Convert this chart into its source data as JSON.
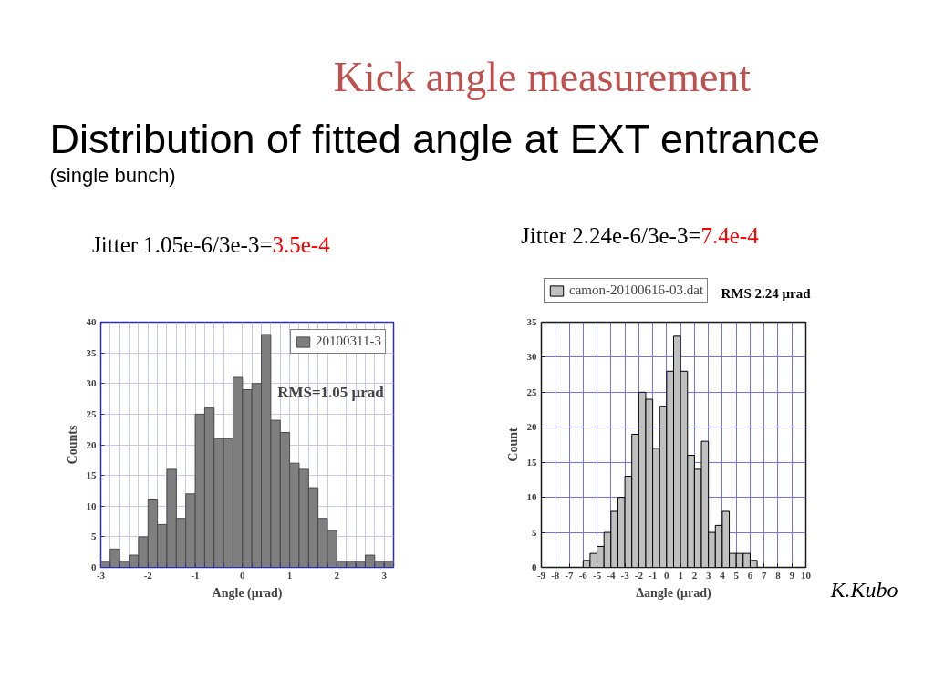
{
  "chart_data": [
    {
      "type": "histogram",
      "title": "Kick angle measurement",
      "subtitle": "Distribution of fitted angle at EXT entrance",
      "xlabel": "Angle (μrad)",
      "ylabel": "Counts",
      "bins": [
        -3,
        -2.8,
        -2.6,
        -2.4,
        -2.2,
        -2,
        -1.8,
        -1.6,
        -1.4,
        -1.2,
        -1,
        -0.8,
        -0.6,
        -0.4,
        -0.2,
        0,
        0.2,
        0.4,
        0.6,
        0.8,
        1,
        1.2,
        1.4,
        1.6,
        1.8,
        2,
        2.2,
        2.4,
        2.6,
        2.8,
        3,
        3.2
      ],
      "series": [
        {
          "name": "20100311-3",
          "color": "#7f7f7f",
          "values": [
            1,
            3,
            1,
            2,
            5,
            11,
            7,
            16,
            8,
            12,
            25,
            26,
            21,
            21,
            31,
            29,
            30,
            38,
            24,
            22,
            17,
            16,
            13,
            8,
            6,
            1,
            1,
            1,
            2,
            1,
            1
          ]
        }
      ],
      "xlim": [
        -3,
        3.2
      ],
      "ylim": [
        0,
        40
      ],
      "xticks": [
        -3,
        {
          "value": -2.8,
          "label": null
        },
        {
          "value": -2.6,
          "label": null
        },
        {
          "value": -2.4,
          "label": null
        },
        {
          "value": -2.2,
          "label": null
        },
        -2,
        {
          "value": -1.8,
          "label": null
        },
        {
          "value": -1.6,
          "label": null
        },
        {
          "value": -1.4,
          "label": null
        },
        {
          "value": -1.2,
          "label": null
        },
        -1,
        {
          "value": -0.8,
          "label": null
        },
        {
          "value": -0.6,
          "label": null
        },
        {
          "value": -0.4,
          "label": null
        },
        {
          "value": -0.2,
          "label": null
        },
        0,
        {
          "value": 0.2,
          "label": null
        },
        {
          "value": 0.4,
          "label": null
        },
        {
          "value": 0.6,
          "label": null
        },
        {
          "value": 0.8,
          "label": null
        },
        1,
        {
          "value": 1.2,
          "label": null
        },
        {
          "value": 1.4,
          "label": null
        },
        {
          "value": 1.6,
          "label": null
        },
        {
          "value": 1.8,
          "label": null
        },
        2,
        {
          "value": 2.2,
          "label": null
        },
        {
          "value": 2.4,
          "label": null
        },
        {
          "value": 2.6,
          "label": null
        },
        {
          "value": 2.8,
          "label": null
        },
        3,
        {
          "value": 3.2,
          "label": null
        }
      ],
      "yticks": [
        0,
        5,
        10,
        15,
        20,
        25,
        30,
        35,
        40
      ],
      "grid": true,
      "legend": "top right",
      "annotations": [
        "(single bunch)",
        "Jitter 1.05e-6/3e-3=3.5e-4",
        "RMS=1.05 μrad"
      ]
    },
    {
      "type": "histogram",
      "xlabel": "Δangle (μrad)",
      "ylabel": "Count",
      "bins": [
        -6,
        -5.5,
        -5,
        -4.5,
        -4,
        -3.5,
        -3,
        -2.5,
        -2,
        -1.5,
        -1,
        -0.5,
        0,
        0.5,
        1,
        1.5,
        2,
        2.5,
        3,
        3.5,
        4,
        4.5,
        5,
        5.5,
        6,
        6.5
      ],
      "series": [
        {
          "name": "camon-20100616-03.dat",
          "color": "#c0c0c0",
          "values": [
            1,
            2,
            3,
            5,
            8,
            10,
            13,
            19,
            25,
            24,
            17,
            23,
            28,
            33,
            28,
            16,
            14,
            18,
            5,
            6,
            8,
            2,
            2,
            2,
            1
          ]
        }
      ],
      "xlim": [
        -9,
        10
      ],
      "ylim": [
        0,
        35
      ],
      "xticks": [
        -9,
        -8,
        -7,
        -6,
        -5,
        -4,
        -3,
        -2,
        -1,
        0,
        1,
        2,
        3,
        4,
        5,
        6,
        7,
        8,
        9,
        10
      ],
      "yticks": [
        0,
        5,
        10,
        15,
        20,
        25,
        30,
        35
      ],
      "grid": true,
      "legend": "top",
      "annotations": [
        "Jitter 2.24e-6/3e-3=7.4e-4",
        "RMS 2.24 μrad",
        "K.Kubo"
      ]
    }
  ]
}
